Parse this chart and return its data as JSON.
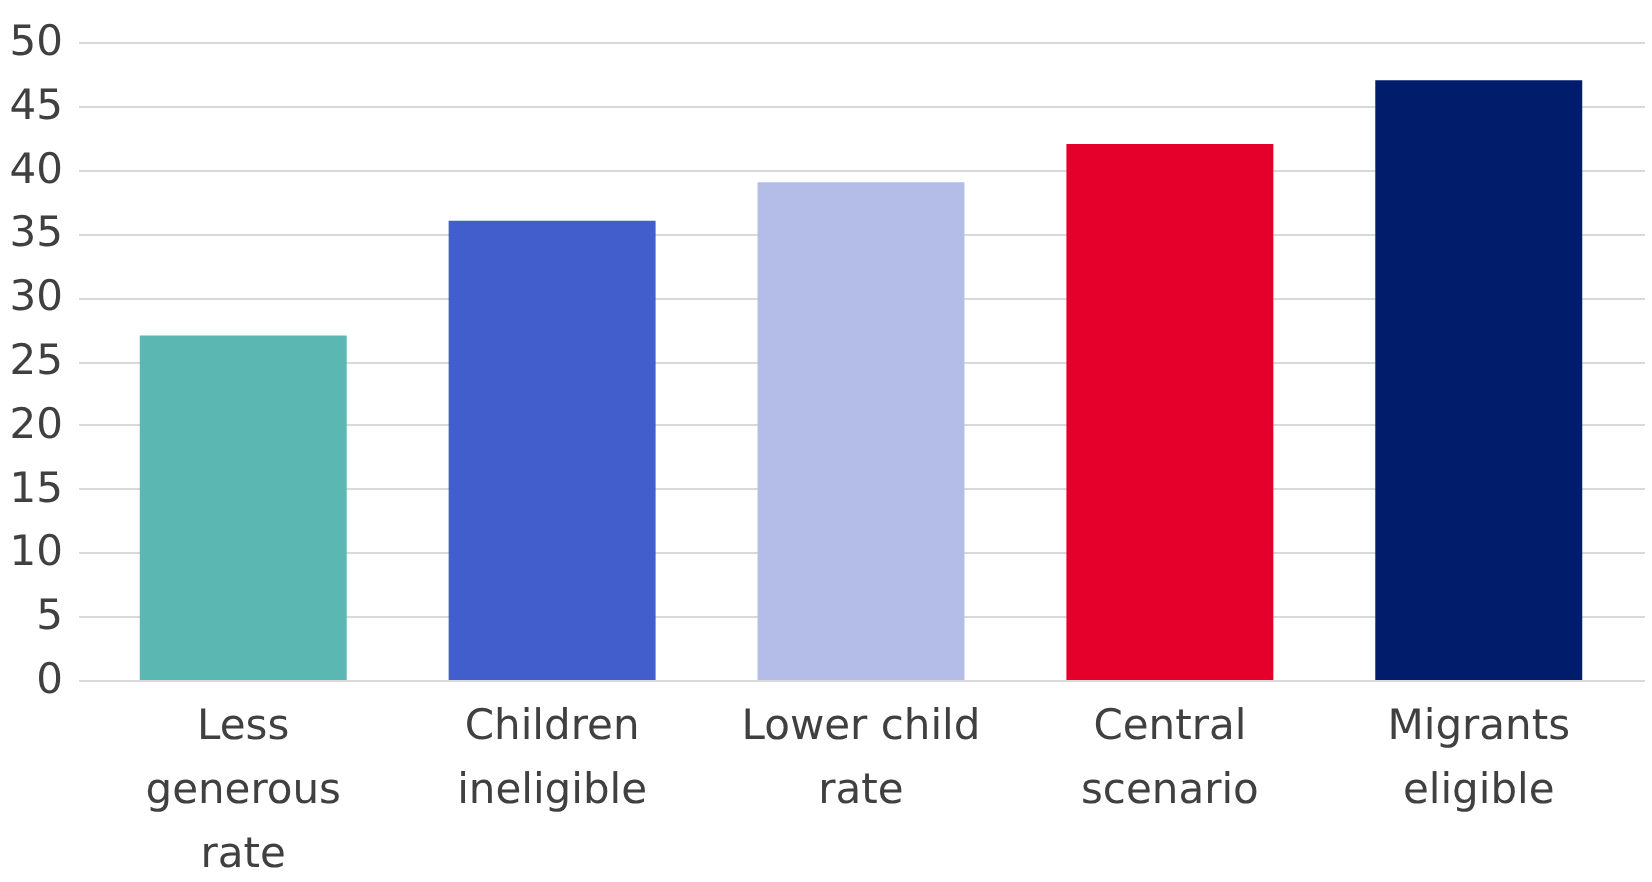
{
  "chart_data": {
    "type": "bar",
    "categories": [
      "Less generous rate",
      "Children ineligible",
      "Lower child rate",
      "Central scenario",
      "Migrants eligible"
    ],
    "values": [
      27,
      36,
      39,
      42,
      47
    ],
    "colors": [
      "#5ab7b2",
      "#425ecc",
      "#b3bde8",
      "#e4002b",
      "#001c6b"
    ],
    "ylim": [
      0,
      50
    ],
    "yticks": [
      0,
      5,
      10,
      15,
      20,
      25,
      30,
      35,
      40,
      45,
      50
    ],
    "grid": "y"
  }
}
